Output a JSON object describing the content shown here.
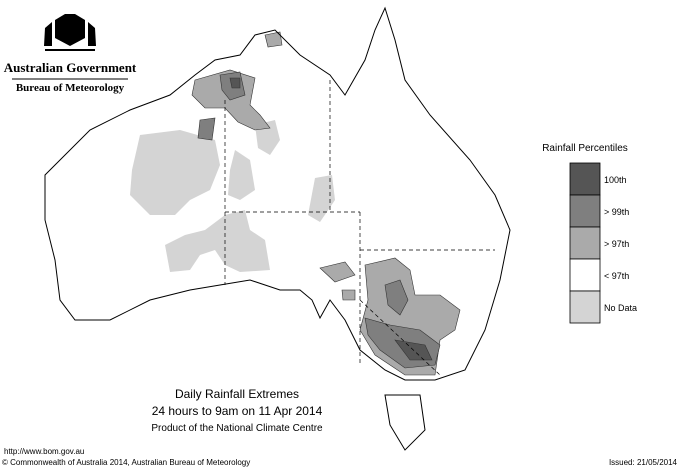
{
  "header": {
    "government": "Australian Government",
    "bureau": "Bureau of Meteorology"
  },
  "legend": {
    "title": "Rainfall Percentiles",
    "items": [
      {
        "label": "100th",
        "color": "#555555"
      },
      {
        "label": "> 99th",
        "color": "#7f7f7f"
      },
      {
        "label": "> 97th",
        "color": "#aaaaaa"
      },
      {
        "label": "< 97th",
        "color": "#ffffff"
      },
      {
        "label": "No Data",
        "color": "#d4d4d4"
      }
    ]
  },
  "caption": {
    "title": "Daily Rainfall Extremes",
    "subtitle": "24 hours to 9am on 11 Apr 2014",
    "credit": "Product of the National Climate Centre"
  },
  "footer": {
    "url": "http://www.bom.gov.au",
    "copyright": "© Commonwealth of Australia 2014, Australian Bureau of Meteorology",
    "issued": "Issued: 21/05/2014"
  }
}
